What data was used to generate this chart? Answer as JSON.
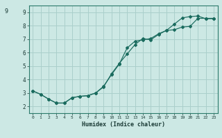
{
  "xlabel": "Humidex (Indice chaleur)",
  "bg_color": "#cce8e4",
  "grid_color": "#aacfcb",
  "line_color": "#1a6b5e",
  "spine_color": "#2a7a6a",
  "xlim": [
    -0.5,
    23.5
  ],
  "ylim": [
    1.5,
    9.5
  ],
  "xticks": [
    0,
    1,
    2,
    3,
    4,
    5,
    6,
    7,
    8,
    9,
    10,
    11,
    12,
    13,
    14,
    15,
    16,
    17,
    18,
    19,
    20,
    21,
    22,
    23
  ],
  "yticks": [
    2,
    3,
    4,
    5,
    6,
    7,
    8,
    9
  ],
  "ytick_extra_label": "9",
  "ytick_extra_y": 9.3,
  "line1_x": [
    0,
    1,
    2,
    3,
    4,
    5,
    6,
    7,
    8,
    9,
    10,
    11,
    12,
    13,
    14,
    15,
    16,
    17,
    18,
    19,
    20,
    21,
    22,
    23
  ],
  "line1_y": [
    3.15,
    2.9,
    2.55,
    2.25,
    2.25,
    2.65,
    2.75,
    2.8,
    3.0,
    3.5,
    4.35,
    5.15,
    6.35,
    6.85,
    6.95,
    7.05,
    7.4,
    7.65,
    8.12,
    8.58,
    8.68,
    8.72,
    8.52,
    8.52
  ],
  "line2_x": [
    0,
    1,
    2,
    3,
    4,
    5,
    6,
    7,
    8,
    9,
    10,
    11,
    12,
    13,
    14,
    15,
    16,
    17,
    18,
    19,
    20,
    21,
    22,
    23
  ],
  "line2_y": [
    3.15,
    2.9,
    2.55,
    2.25,
    2.25,
    2.65,
    2.75,
    2.8,
    3.0,
    3.45,
    4.42,
    5.2,
    5.9,
    6.6,
    7.05,
    6.95,
    7.35,
    7.65,
    7.7,
    7.9,
    7.95,
    8.55,
    8.55,
    8.55
  ]
}
